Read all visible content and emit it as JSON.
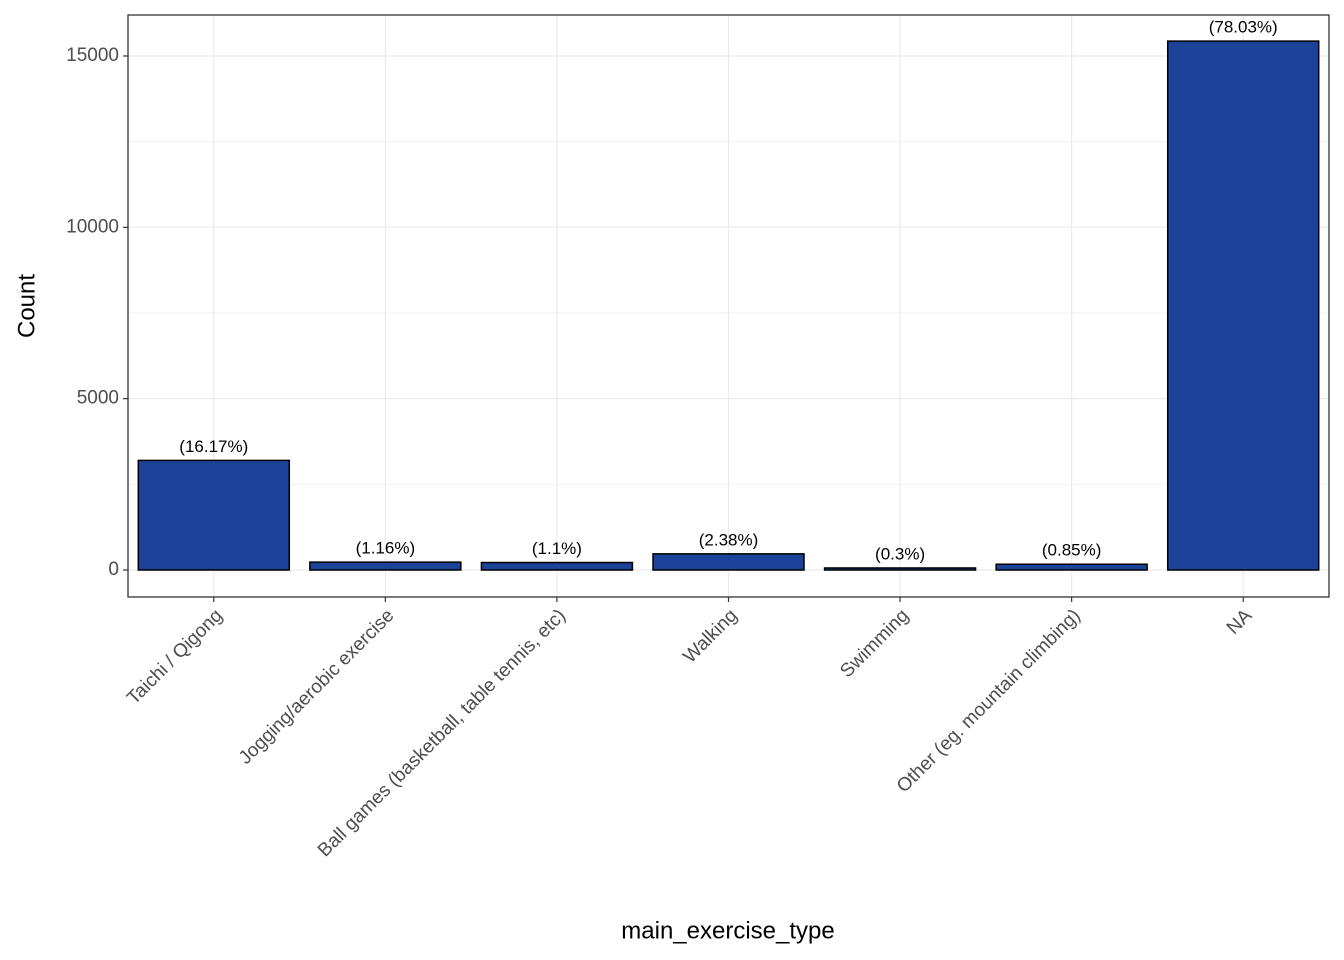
{
  "chart_data": {
    "type": "bar",
    "x_label": "main_exercise_type",
    "y_label": "Count",
    "categories": [
      "Taichi / Qigong",
      "Jogging/aerobic exercise",
      "Ball games (basketball, table tennis, etc)",
      "Walking",
      "Swimming",
      "Other (eg. mountain climbing)",
      "NA"
    ],
    "values": [
      3198,
      229,
      218,
      471,
      59,
      168,
      15434
    ],
    "percent_labels": [
      "(16.17%)",
      "(1.16%)",
      "(1.1%)",
      "(2.38%)",
      "(0.3%)",
      "(0.85%)",
      "(78.03%)"
    ],
    "color": "#1a4399",
    "ylim": [
      -788,
      16196
    ],
    "yticks": [
      0,
      5000,
      10000,
      15000
    ],
    "grid": true
  }
}
